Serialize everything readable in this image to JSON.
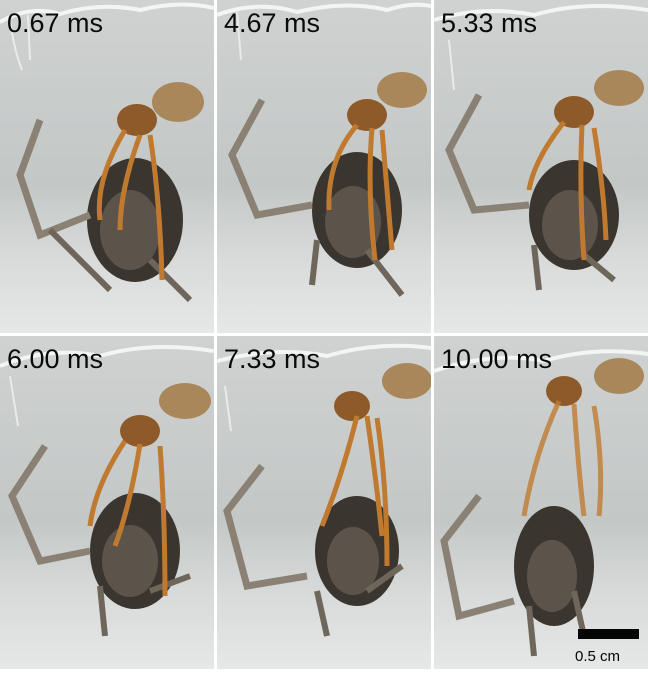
{
  "frames": [
    {
      "timestamp": "0.67 ms"
    },
    {
      "timestamp": "4.67 ms"
    },
    {
      "timestamp": "5.33 ms"
    },
    {
      "timestamp": "6.00 ms"
    },
    {
      "timestamp": "7.33 ms"
    },
    {
      "timestamp": "10.00 ms"
    }
  ],
  "scale_bar": {
    "label": "0.5 cm"
  }
}
